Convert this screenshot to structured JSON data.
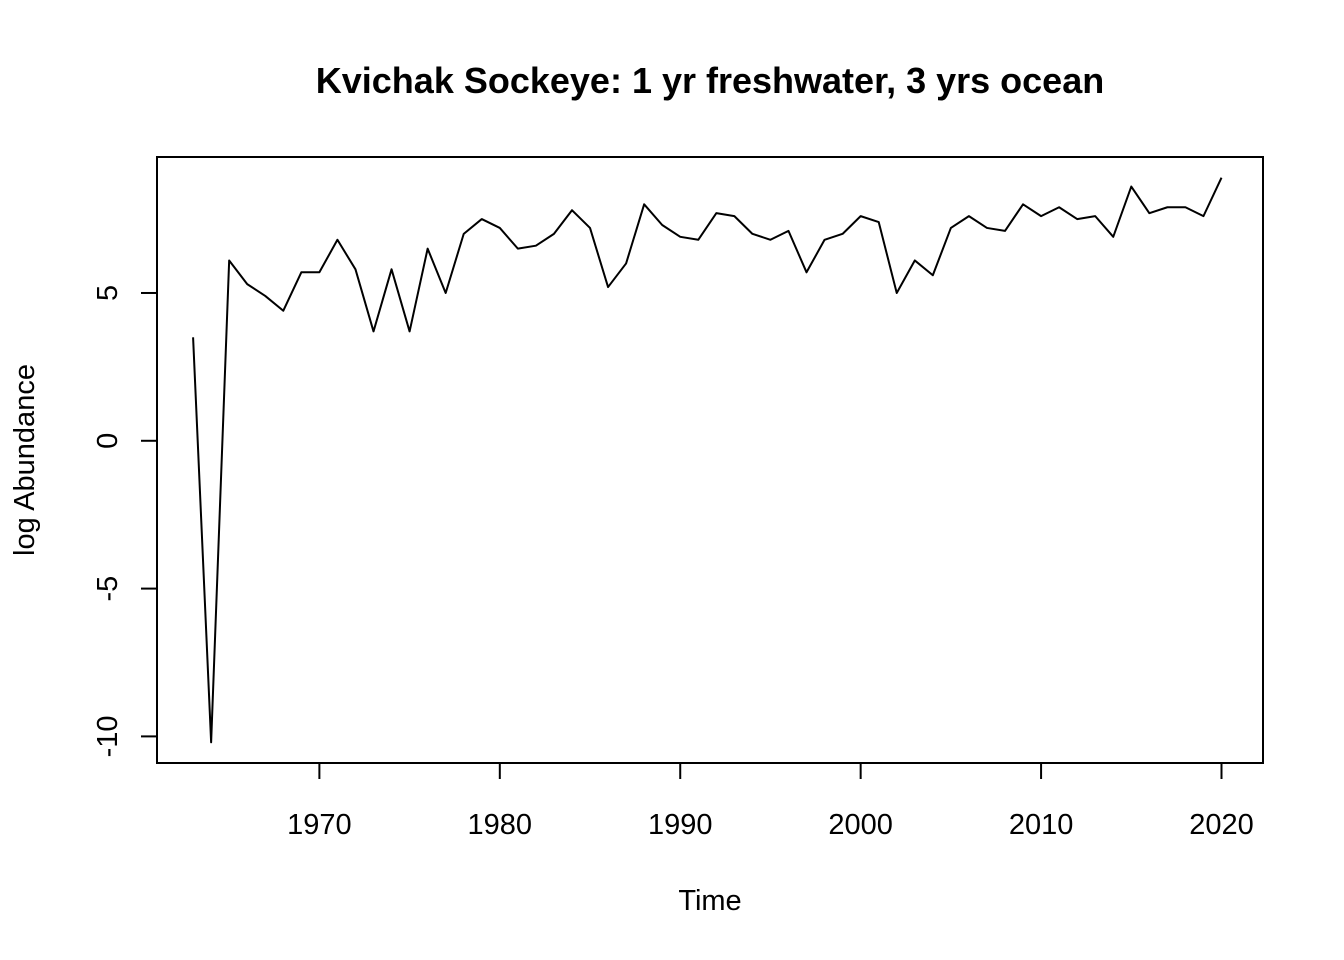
{
  "chart_data": {
    "type": "line",
    "title": "Kvichak Sockeye: 1 yr freshwater, 3 yrs ocean",
    "xlabel": "Time",
    "ylabel": "log Abundance",
    "xlim": [
      1961,
      2022.3
    ],
    "ylim": [
      -10.9,
      9.6
    ],
    "x_ticks": [
      1970,
      1980,
      1990,
      2000,
      2010,
      2020
    ],
    "y_ticks": [
      -10,
      -5,
      0,
      5
    ],
    "x_tick_labels": [
      "1970",
      "1980",
      "1990",
      "2000",
      "2010",
      "2020"
    ],
    "y_tick_labels": [
      "-10",
      "-5",
      "0",
      "5"
    ],
    "grid": false,
    "legend": false,
    "series": [
      {
        "x": [
          1963,
          1964,
          1965,
          1966,
          1967,
          1968,
          1969,
          1970,
          1971,
          1972,
          1973,
          1974,
          1975,
          1976,
          1977,
          1978,
          1979,
          1980,
          1981,
          1982,
          1983,
          1984,
          1985,
          1986,
          1987,
          1988,
          1989,
          1990,
          1991,
          1992,
          1993,
          1994,
          1995,
          1996,
          1997,
          1998,
          1999,
          2000,
          2001,
          2002,
          2003,
          2004,
          2005,
          2006,
          2007,
          2008,
          2009,
          2010,
          2011,
          2012,
          2013,
          2014,
          2015,
          2016,
          2017,
          2018,
          2019,
          2020
        ],
        "values": [
          3.5,
          -10.2,
          6.1,
          5.3,
          4.9,
          4.4,
          5.7,
          5.7,
          6.8,
          5.8,
          3.7,
          5.8,
          3.7,
          6.5,
          5.0,
          7.0,
          7.5,
          7.2,
          6.5,
          6.6,
          7.0,
          7.8,
          7.2,
          5.2,
          6.0,
          8.0,
          7.3,
          6.9,
          6.8,
          7.7,
          7.6,
          7.0,
          6.8,
          7.1,
          5.7,
          6.8,
          7.0,
          7.6,
          7.4,
          5.0,
          6.1,
          5.6,
          7.2,
          7.6,
          7.2,
          7.1,
          8.0,
          7.6,
          7.9,
          7.5,
          7.6,
          6.9,
          8.6,
          7.7,
          7.9,
          7.9,
          7.6,
          8.9
        ]
      }
    ]
  }
}
